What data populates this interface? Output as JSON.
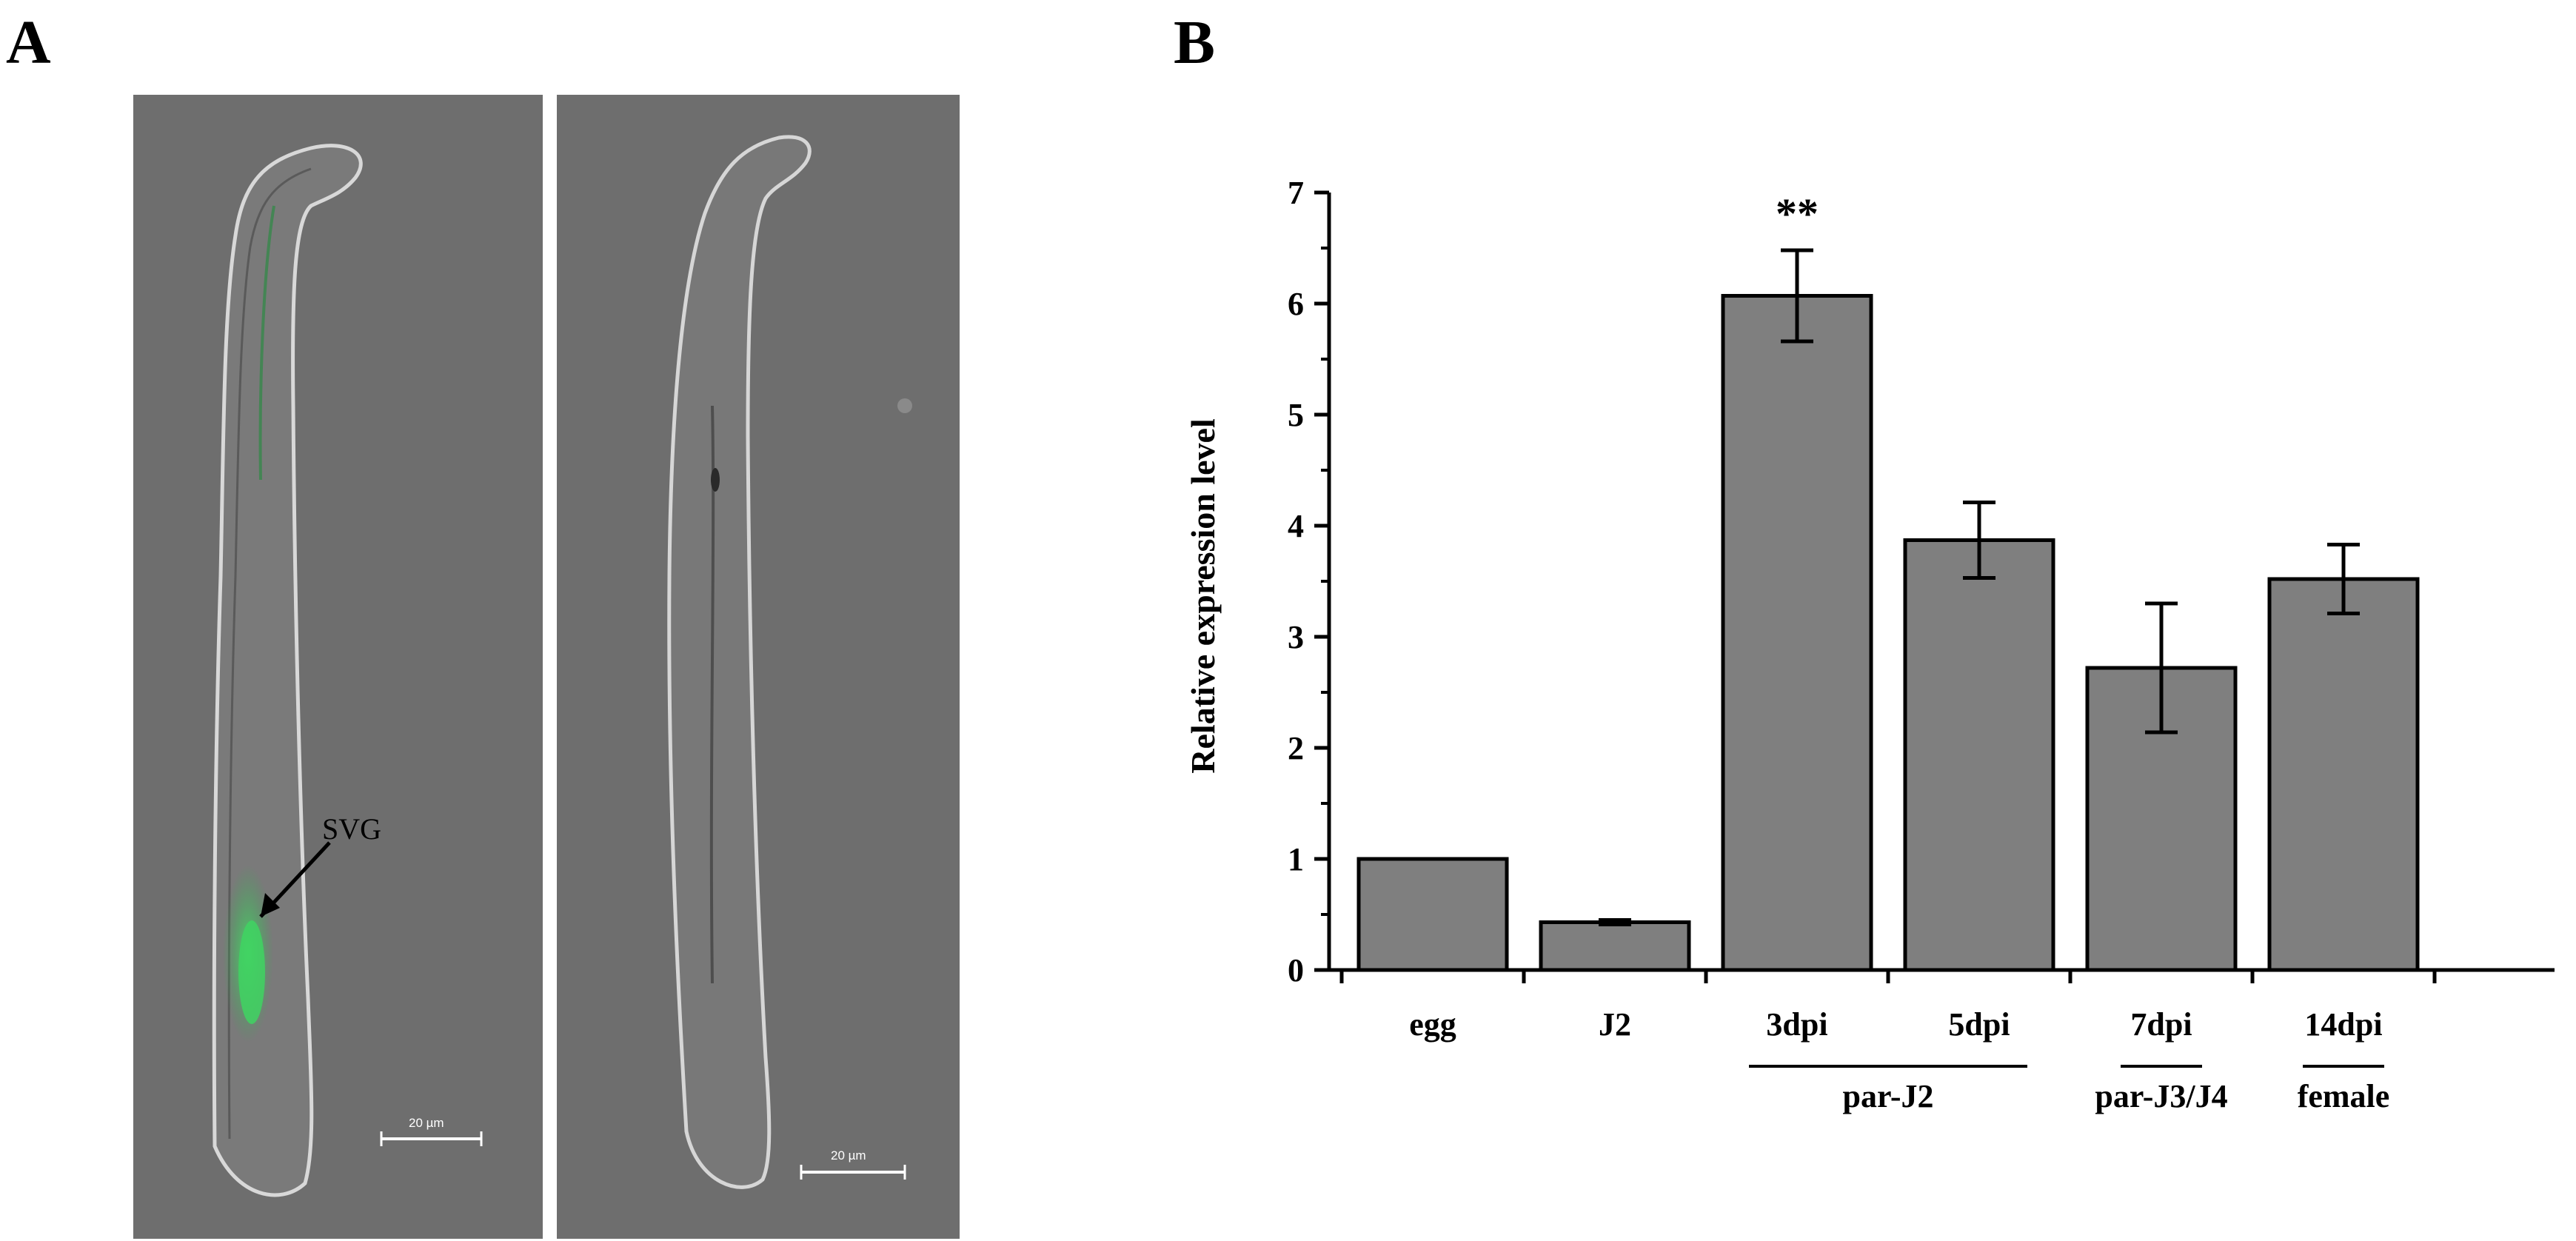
{
  "panels": {
    "a_label": "A",
    "b_label": "B"
  },
  "micrographs": {
    "left": {
      "arrow_label": "SVG",
      "scale_bar": "20 µm"
    },
    "right": {
      "scale_bar": "20 µm"
    }
  },
  "colors": {
    "bar_fill": "#7f7f7f",
    "bar_stroke": "#000000",
    "micrograph_bg": "#6e6e6e",
    "gfp_signal": "#2fb24e"
  },
  "chart_data": {
    "type": "bar",
    "title": "",
    "xlabel": "",
    "ylabel": "Relative expression level",
    "ylim": [
      0,
      7
    ],
    "yticks": [
      "0",
      "1",
      "2",
      "3",
      "4",
      "5",
      "6",
      "7"
    ],
    "categories": [
      "egg",
      "J2",
      "3dpi",
      "5dpi",
      "7dpi",
      "14dpi"
    ],
    "values": [
      1.0,
      0.43,
      6.07,
      3.87,
      2.72,
      3.52
    ],
    "errors": [
      0.0,
      0.02,
      0.41,
      0.34,
      0.58,
      0.31
    ],
    "significance": [
      "",
      "",
      "**",
      "",
      "",
      ""
    ],
    "groups": [
      {
        "label": "par-J2",
        "from": 2,
        "to": 3
      },
      {
        "label": "par-J3/J4",
        "from": 4,
        "to": 4
      },
      {
        "label": "female",
        "from": 5,
        "to": 5
      }
    ],
    "grid": false
  }
}
